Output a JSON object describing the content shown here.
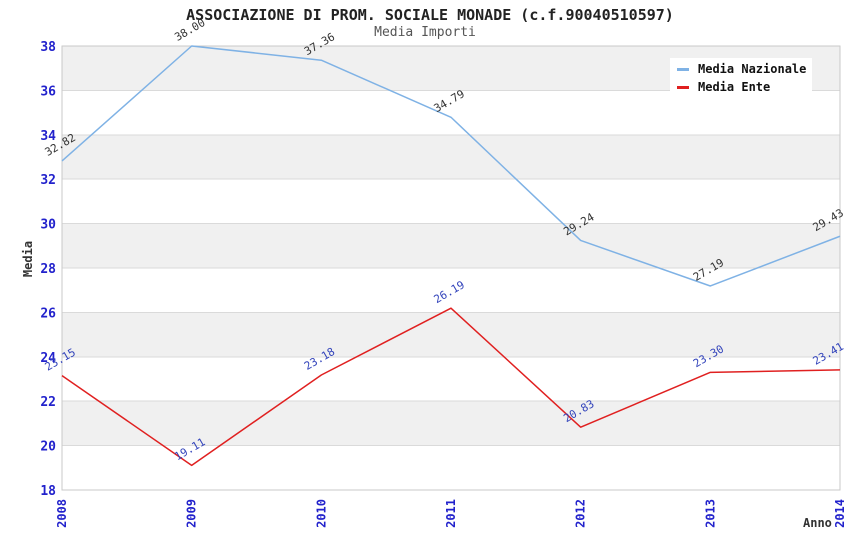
{
  "chart_data": {
    "type": "line",
    "title": "ASSOCIAZIONE DI PROM. SOCIALE MONADE (c.f.90040510597)",
    "subtitle": "Media Importi",
    "xlabel": "Anno",
    "ylabel": "Media",
    "categories": [
      "2008",
      "2009",
      "2010",
      "2011",
      "2012",
      "2013",
      "2014"
    ],
    "series": [
      {
        "name": "Media Nazionale",
        "color": "#7fb2e5",
        "label_color": "#333333",
        "values": [
          32.82,
          38.0,
          37.36,
          34.79,
          29.24,
          27.19,
          29.43
        ],
        "labels": [
          "32.82",
          "38.00",
          "37.36",
          "34.79",
          "29.24",
          "27.19",
          "29.43"
        ]
      },
      {
        "name": "Media Ente",
        "color": "#e02020",
        "label_color": "#3344bb",
        "values": [
          23.15,
          19.11,
          23.18,
          26.19,
          20.83,
          23.3,
          23.41
        ],
        "labels": [
          "23.15",
          "19.11",
          "23.18",
          "26.19",
          "20.83",
          "23.30",
          "23.41"
        ]
      }
    ],
    "ylim": [
      18,
      38
    ],
    "ytick_step": 2,
    "yticks": [
      "18",
      "20",
      "22",
      "24",
      "26",
      "28",
      "30",
      "32",
      "34",
      "36",
      "38"
    ],
    "legend_position": "top-right",
    "grid": "horizontal-bands",
    "colors": {
      "tick_label": "#2222cc",
      "axis_title": "#333333",
      "title": "#222222",
      "subtitle": "#555555",
      "plot_border": "#c9c9c9",
      "gridline": "#dadada",
      "band_gray": "#f0f0f0",
      "band_white": "#ffffff",
      "legend_bg": "#ffffff"
    }
  }
}
